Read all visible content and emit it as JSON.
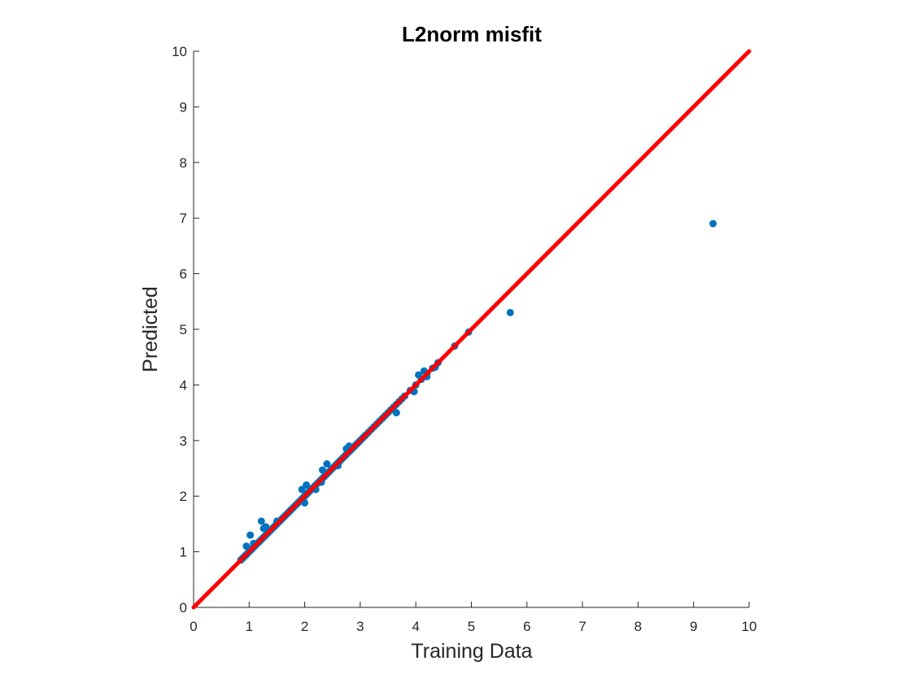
{
  "chart_data": {
    "type": "scatter",
    "title": "L2norm misfit",
    "xlabel": "Training Data",
    "ylabel": "Predicted",
    "xlim": [
      0,
      10
    ],
    "ylim": [
      0,
      10
    ],
    "xticks": [
      "0",
      "1",
      "2",
      "3",
      "4",
      "5",
      "6",
      "7",
      "8",
      "9",
      "10"
    ],
    "yticks": [
      "0",
      "1",
      "2",
      "3",
      "4",
      "5",
      "6",
      "7",
      "8",
      "9",
      "10"
    ],
    "grid": false,
    "series": [
      {
        "marker_color": "#0072BD",
        "x": [
          0.85,
          0.88,
          0.9,
          0.93,
          0.95,
          0.97,
          1.0,
          1.02,
          1.05,
          1.07,
          1.1,
          1.12,
          1.15,
          1.18,
          1.2,
          1.22,
          1.25,
          1.28,
          1.3,
          1.33,
          1.35,
          1.38,
          1.4,
          1.43,
          1.45,
          1.48,
          1.5,
          1.53,
          1.55,
          1.58,
          1.6,
          1.63,
          1.65,
          1.68,
          1.7,
          1.73,
          1.75,
          1.78,
          1.8,
          1.83,
          1.85,
          1.88,
          1.9,
          1.93,
          1.95,
          1.98,
          2.0,
          2.03,
          2.05,
          2.08,
          2.1,
          2.13,
          2.15,
          2.18,
          2.2,
          2.23,
          2.25,
          2.28,
          2.3,
          2.33,
          2.35,
          2.38,
          2.4,
          2.43,
          2.45,
          2.48,
          2.5,
          2.53,
          2.55,
          2.58,
          2.6,
          2.63,
          2.65,
          2.68,
          2.7,
          2.73,
          2.75,
          2.78,
          2.8,
          2.83,
          2.85,
          2.88,
          2.9,
          2.93,
          2.95,
          2.98,
          3.0,
          3.03,
          3.05,
          3.08,
          3.1,
          3.15,
          3.2,
          3.25,
          3.3,
          3.35,
          3.4,
          3.45,
          3.5,
          3.55,
          3.6,
          3.65,
          3.7,
          3.75,
          3.8,
          3.9,
          4.0,
          4.1,
          4.2,
          4.3,
          4.4,
          4.7,
          4.95,
          0.95,
          1.02,
          1.08,
          1.22,
          1.26,
          1.95,
          2.03,
          2.1,
          2.32,
          2.4,
          2.75,
          2.8,
          3.65,
          3.97,
          4.05,
          4.15,
          4.2,
          4.35,
          2.0,
          2.2,
          2.3,
          2.6,
          1.3,
          1.5,
          5.7,
          9.35
        ],
        "y": [
          0.85,
          0.88,
          0.9,
          0.93,
          0.95,
          0.97,
          1.0,
          1.02,
          1.05,
          1.07,
          1.1,
          1.12,
          1.15,
          1.18,
          1.2,
          1.22,
          1.25,
          1.28,
          1.3,
          1.33,
          1.35,
          1.38,
          1.4,
          1.43,
          1.45,
          1.48,
          1.5,
          1.53,
          1.55,
          1.58,
          1.6,
          1.63,
          1.65,
          1.68,
          1.7,
          1.73,
          1.75,
          1.78,
          1.8,
          1.83,
          1.85,
          1.88,
          1.9,
          1.93,
          1.95,
          1.98,
          2.0,
          2.03,
          2.05,
          2.08,
          2.1,
          2.13,
          2.15,
          2.18,
          2.2,
          2.23,
          2.25,
          2.28,
          2.3,
          2.33,
          2.35,
          2.38,
          2.4,
          2.43,
          2.45,
          2.48,
          2.5,
          2.53,
          2.55,
          2.58,
          2.6,
          2.63,
          2.65,
          2.68,
          2.7,
          2.73,
          2.75,
          2.78,
          2.8,
          2.83,
          2.85,
          2.88,
          2.9,
          2.93,
          2.95,
          2.98,
          3.0,
          3.03,
          3.05,
          3.08,
          3.1,
          3.15,
          3.2,
          3.25,
          3.3,
          3.35,
          3.4,
          3.45,
          3.5,
          3.55,
          3.6,
          3.65,
          3.7,
          3.75,
          3.8,
          3.9,
          4.0,
          4.1,
          4.2,
          4.3,
          4.4,
          4.7,
          4.95,
          1.1,
          1.3,
          1.15,
          1.55,
          1.42,
          2.12,
          2.2,
          2.12,
          2.47,
          2.58,
          2.85,
          2.9,
          3.5,
          3.88,
          4.18,
          4.25,
          4.15,
          4.32,
          1.88,
          2.12,
          2.25,
          2.55,
          1.45,
          1.55,
          5.3,
          6.9
        ]
      }
    ],
    "reference_line": {
      "x": [
        0,
        10
      ],
      "y": [
        0,
        10
      ],
      "color": "#FF0000"
    }
  }
}
